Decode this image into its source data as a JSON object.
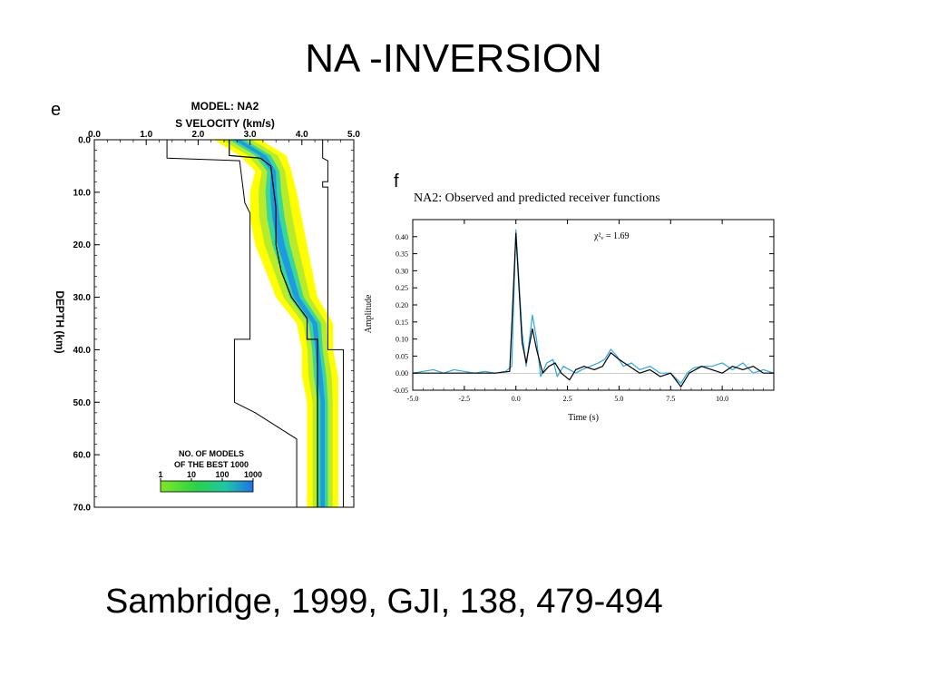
{
  "slide": {
    "title": "NA -INVERSION",
    "citation": "Sambridge, 1999, GJI, 138, 479-494"
  },
  "colors": {
    "band_outer": "#ffff00",
    "band_mid": "#b8ec2a",
    "band_inner": "#39d89a",
    "band_core": "#1e9be0",
    "observed": "#2aa8e6",
    "predicted": "#000000",
    "bounds": "#000000"
  },
  "chart_data": [
    {
      "type": "line",
      "panel_letter": "e",
      "title": "MODEL: NA2",
      "xlabel": "S VELOCITY (km/s)",
      "ylabel": "DEPTH (km)",
      "xlim": [
        0,
        5
      ],
      "ylim": [
        0,
        70
      ],
      "y_inverted": true,
      "x_ticks": [
        "0.0",
        "1.0",
        "2.0",
        "3.0",
        "4.0",
        "5.0"
      ],
      "x_axis_position": "top",
      "y_ticks": [
        "0.0",
        "10.0",
        "20.0",
        "30.0",
        "40.0",
        "50.0",
        "60.0",
        "70.0"
      ],
      "legend": {
        "title_line1": "NO. OF MODELS",
        "title_line2": "OF THE BEST 1000",
        "ticks": [
          "1",
          "10",
          "100",
          "1000"
        ],
        "colorbar": [
          "#7ee81e",
          "#27d24a",
          "#1ec7a6",
          "#1e73e8"
        ],
        "placement": "bottom-left"
      },
      "series": [
        {
          "role": "lower-bound",
          "points": [
            [
              1.4,
              0
            ],
            [
              1.4,
              3.5
            ],
            [
              2.8,
              4
            ],
            [
              2.9,
              12
            ],
            [
              3.0,
              14
            ],
            [
              3.0,
              38
            ],
            [
              2.7,
              38
            ],
            [
              2.7,
              50
            ],
            [
              3.1,
              52
            ],
            [
              3.9,
              57
            ],
            [
              3.9,
              70
            ]
          ]
        },
        {
          "role": "upper-bound",
          "points": [
            [
              4.4,
              0
            ],
            [
              4.4,
              3.5
            ],
            [
              4.5,
              4
            ],
            [
              4.5,
              8
            ],
            [
              4.4,
              8
            ],
            [
              4.4,
              9
            ],
            [
              4.5,
              9
            ],
            [
              4.5,
              40
            ],
            [
              4.8,
              40
            ],
            [
              4.8,
              70
            ]
          ]
        },
        {
          "role": "best-model",
          "points": [
            [
              2.6,
              0
            ],
            [
              2.6,
              3
            ],
            [
              3.2,
              3.5
            ],
            [
              3.4,
              5
            ],
            [
              3.5,
              13
            ],
            [
              3.5,
              20
            ],
            [
              3.6,
              25
            ],
            [
              3.8,
              30
            ],
            [
              4.1,
              34
            ],
            [
              4.1,
              38
            ],
            [
              4.3,
              38
            ],
            [
              4.3,
              70
            ]
          ]
        }
      ],
      "ensemble_band": [
        [
          0,
          2.3,
          3.2
        ],
        [
          3,
          2.8,
          3.7
        ],
        [
          6,
          3.1,
          3.8
        ],
        [
          10,
          3.0,
          3.9
        ],
        [
          15,
          3.0,
          4.0
        ],
        [
          20,
          3.1,
          4.1
        ],
        [
          25,
          3.3,
          4.2
        ],
        [
          30,
          3.5,
          4.3
        ],
        [
          35,
          3.9,
          4.6
        ],
        [
          40,
          4.0,
          4.6
        ],
        [
          45,
          4.0,
          4.7
        ],
        [
          50,
          4.1,
          4.7
        ],
        [
          55,
          4.1,
          4.7
        ],
        [
          60,
          4.1,
          4.7
        ],
        [
          70,
          4.1,
          4.7
        ]
      ]
    },
    {
      "type": "line",
      "panel_letter": "f",
      "title": "NA2: Observed and predicted receiver functions",
      "xlabel": "Time (s)",
      "ylabel": "Amplitude",
      "xlim": [
        -5,
        12.5
      ],
      "ylim": [
        -0.05,
        0.45
      ],
      "x_ticks": [
        "-5.0",
        "-2.5",
        "0.0",
        "2.5",
        "5.0",
        "7.5",
        "10.0"
      ],
      "y_ticks": [
        "0.40",
        "0.35",
        "0.30",
        "0.25",
        "0.20",
        "0.15",
        "0.10",
        "0.05",
        "0.00",
        "-0.05"
      ],
      "annotation": "χ²ᵥ = 1.69",
      "series": [
        {
          "role": "observed",
          "points": [
            [
              -5,
              0.0
            ],
            [
              -4.5,
              0.005
            ],
            [
              -4,
              0.01
            ],
            [
              -3.5,
              0.0
            ],
            [
              -3,
              0.01
            ],
            [
              -2.5,
              0.005
            ],
            [
              -2,
              0.0
            ],
            [
              -1.5,
              0.005
            ],
            [
              -1,
              0.0
            ],
            [
              -0.5,
              0.005
            ],
            [
              -0.2,
              0.02
            ],
            [
              0,
              0.42
            ],
            [
              0.3,
              0.12
            ],
            [
              0.5,
              0.02
            ],
            [
              0.8,
              0.17
            ],
            [
              1.0,
              0.1
            ],
            [
              1.2,
              -0.01
            ],
            [
              1.5,
              0.03
            ],
            [
              1.8,
              0.04
            ],
            [
              2.0,
              -0.01
            ],
            [
              2.3,
              0.02
            ],
            [
              2.6,
              0.01
            ],
            [
              2.9,
              0.0
            ],
            [
              3.2,
              0.01
            ],
            [
              3.6,
              0.02
            ],
            [
              4.0,
              0.03
            ],
            [
              4.3,
              0.04
            ],
            [
              4.6,
              0.07
            ],
            [
              4.9,
              0.05
            ],
            [
              5.2,
              0.02
            ],
            [
              5.6,
              0.03
            ],
            [
              6.0,
              0.01
            ],
            [
              6.5,
              0.02
            ],
            [
              7.0,
              0.0
            ],
            [
              7.5,
              0.0
            ],
            [
              8.0,
              -0.03
            ],
            [
              8.3,
              0.0
            ],
            [
              8.6,
              0.015
            ],
            [
              9.0,
              0.02
            ],
            [
              9.5,
              0.02
            ],
            [
              10.0,
              0.03
            ],
            [
              10.5,
              0.01
            ],
            [
              11.0,
              0.03
            ],
            [
              11.5,
              0.0
            ],
            [
              12.0,
              0.01
            ],
            [
              12.5,
              0.0
            ]
          ]
        },
        {
          "role": "predicted",
          "points": [
            [
              -5,
              0.0
            ],
            [
              -4,
              0.0
            ],
            [
              -3,
              0.0
            ],
            [
              -2,
              0.0
            ],
            [
              -1,
              0.0
            ],
            [
              -0.3,
              0.005
            ],
            [
              0,
              0.41
            ],
            [
              0.3,
              0.09
            ],
            [
              0.5,
              0.03
            ],
            [
              0.8,
              0.13
            ],
            [
              1.0,
              0.07
            ],
            [
              1.3,
              0.0
            ],
            [
              1.6,
              0.02
            ],
            [
              1.9,
              0.03
            ],
            [
              2.2,
              0.0
            ],
            [
              2.6,
              -0.02
            ],
            [
              2.9,
              0.01
            ],
            [
              3.3,
              0.02
            ],
            [
              3.8,
              0.01
            ],
            [
              4.2,
              0.02
            ],
            [
              4.6,
              0.06
            ],
            [
              5.0,
              0.04
            ],
            [
              5.5,
              0.02
            ],
            [
              6.0,
              0.0
            ],
            [
              6.5,
              0.01
            ],
            [
              7.0,
              -0.01
            ],
            [
              7.5,
              0.0
            ],
            [
              8.0,
              -0.04
            ],
            [
              8.4,
              0.0
            ],
            [
              9.0,
              0.02
            ],
            [
              9.5,
              0.01
            ],
            [
              10.0,
              0.0
            ],
            [
              10.5,
              0.02
            ],
            [
              11.0,
              0.01
            ],
            [
              11.5,
              0.02
            ],
            [
              12.0,
              0.0
            ],
            [
              12.5,
              0.0
            ]
          ]
        }
      ]
    }
  ]
}
